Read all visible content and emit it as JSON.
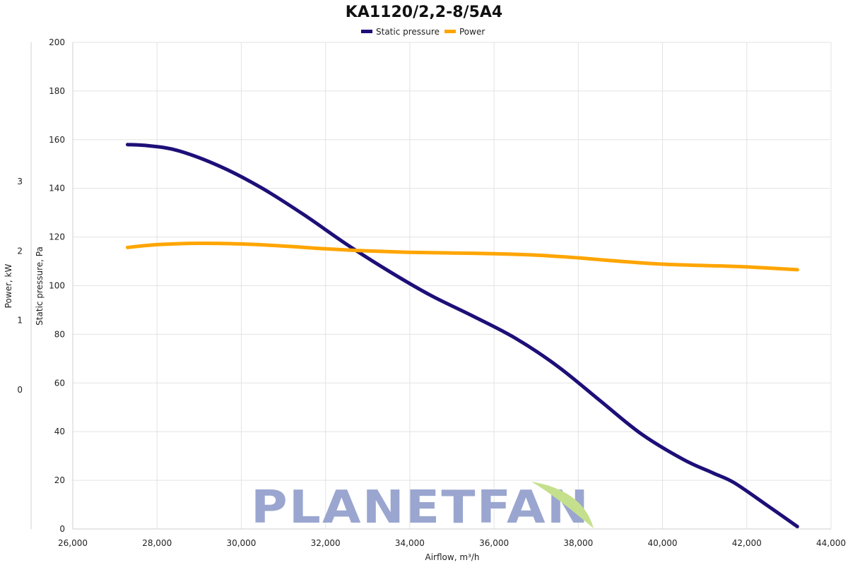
{
  "chart_data": {
    "type": "line",
    "title": "KA1120/2,2-8/5A4",
    "xlabel": "Airflow, m³/h",
    "ylabel_left_inner": "Static pressure, Pa",
    "ylabel_left_outer": "Power, kW",
    "xlim": [
      26000,
      44000
    ],
    "ylim_pressure": [
      0,
      200
    ],
    "ylim_power": [
      -2,
      5
    ],
    "x_ticks": [
      26000,
      28000,
      30000,
      32000,
      34000,
      36000,
      38000,
      40000,
      42000,
      44000
    ],
    "x_tick_labels": [
      "26,000",
      "28,000",
      "30,000",
      "32,000",
      "34,000",
      "36,000",
      "38,000",
      "40,000",
      "42,000",
      "44,000"
    ],
    "pressure_ticks": [
      0,
      20,
      40,
      60,
      80,
      100,
      120,
      140,
      160,
      180,
      200
    ],
    "pressure_tick_labels": [
      "0",
      "20",
      "40",
      "60",
      "80",
      "100",
      "120",
      "140",
      "160",
      "180",
      "200"
    ],
    "power_ticks": [
      0,
      1,
      2,
      3
    ],
    "power_tick_labels": [
      "0",
      "1",
      "2",
      "3"
    ],
    "grid": true,
    "legend_position": "top-center",
    "series": [
      {
        "name": "Static pressure",
        "axis": "pressure",
        "color": "#1d0f78",
        "x": [
          27300,
          27800,
          28500,
          29500,
          30500,
          31500,
          32500,
          33500,
          34500,
          35500,
          36500,
          37500,
          38500,
          39500,
          40500,
          41200,
          41700,
          42500,
          43200
        ],
        "y": [
          158,
          157.5,
          155.5,
          149,
          140,
          129,
          117,
          106,
          96,
          87.5,
          78.5,
          67,
          53,
          39,
          28.5,
          23,
          19,
          9.5,
          1
        ]
      },
      {
        "name": "Power",
        "axis": "power",
        "color": "#ffa500",
        "x": [
          27300,
          28000,
          29000,
          30000,
          31000,
          32000,
          33000,
          34000,
          35000,
          36000,
          37000,
          38000,
          39000,
          40000,
          41000,
          42000,
          43200
        ],
        "y": [
          2.05,
          2.09,
          2.11,
          2.1,
          2.07,
          2.03,
          2.0,
          1.98,
          1.97,
          1.96,
          1.94,
          1.9,
          1.85,
          1.81,
          1.79,
          1.77,
          1.73
        ]
      }
    ]
  },
  "watermark": {
    "text": "PLANETFAN",
    "color": "#9aa6cf",
    "leaf_color": "#c5e08d"
  }
}
